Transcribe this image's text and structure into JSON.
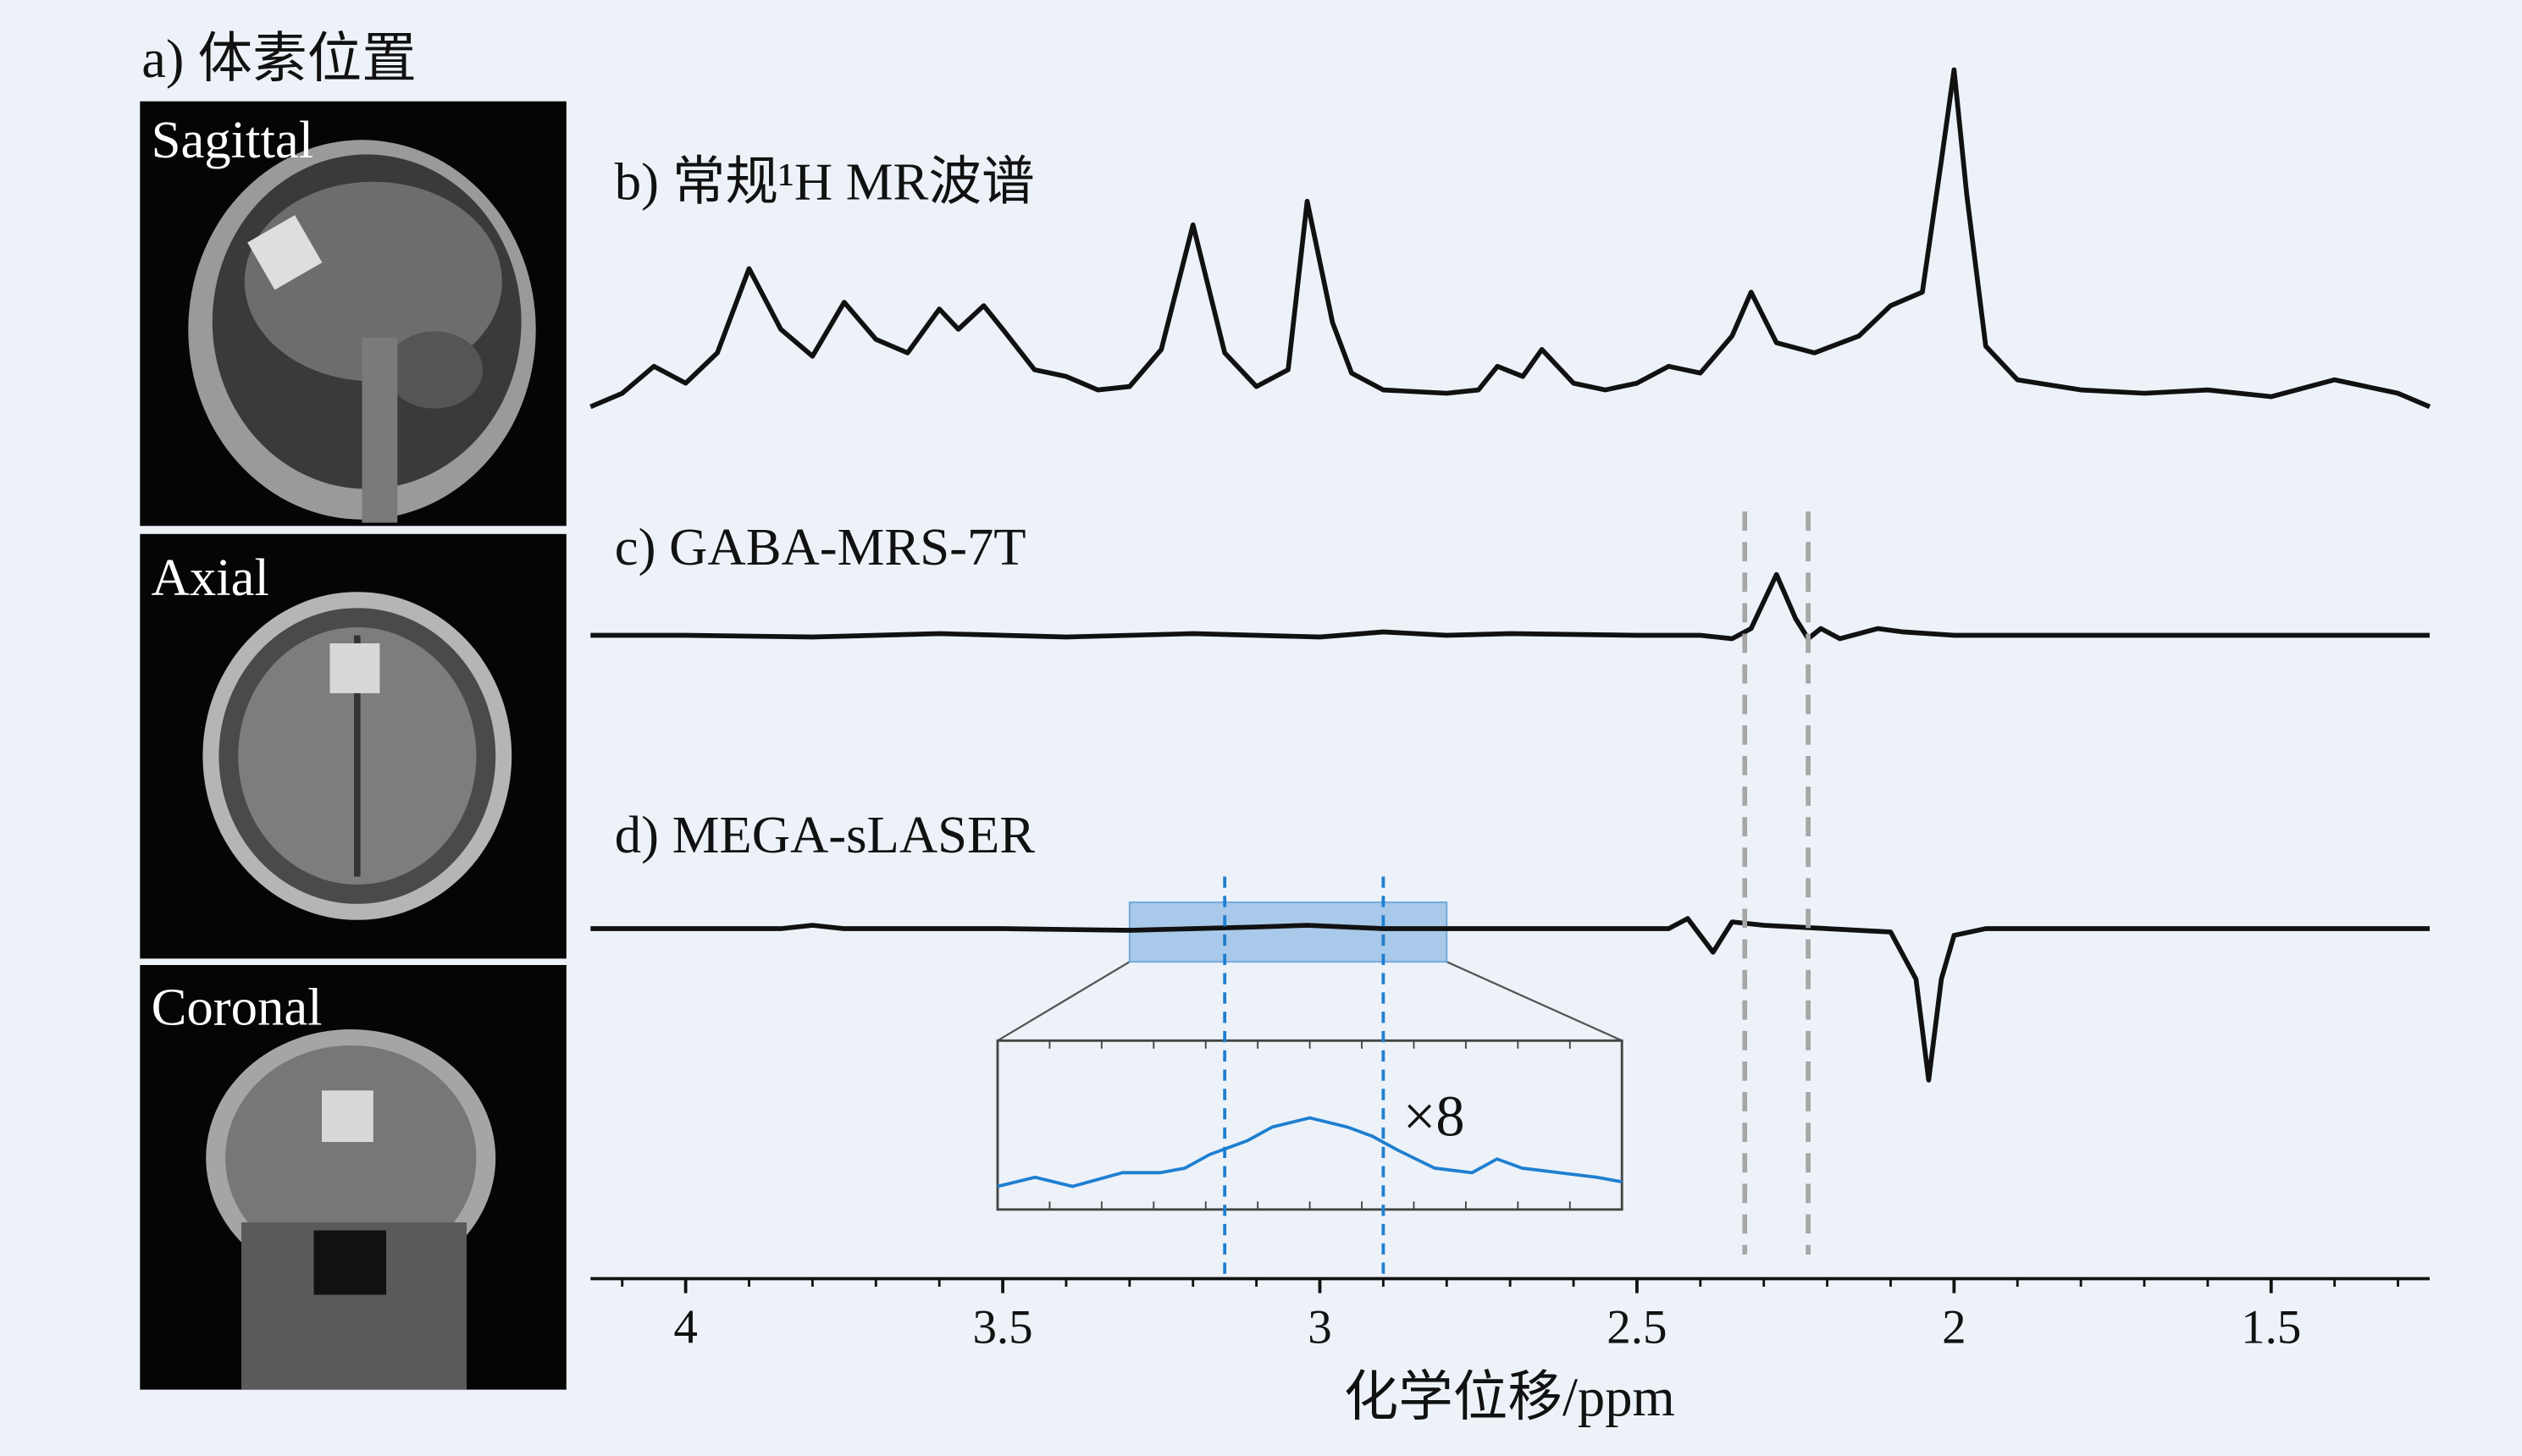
{
  "images": {
    "title": "a) 体素位置",
    "views": [
      "Sagittal",
      "Axial",
      "Coronal"
    ]
  },
  "chart_data": [
    {
      "type": "line",
      "title": "b) 常规¹H MR波谱",
      "color": "#111111",
      "xlim": [
        4.15,
        1.25
      ],
      "ylim": [
        0,
        105
      ],
      "x": [
        4.15,
        4.1,
        4.05,
        4.0,
        3.95,
        3.9,
        3.85,
        3.8,
        3.75,
        3.7,
        3.65,
        3.6,
        3.57,
        3.53,
        3.5,
        3.45,
        3.4,
        3.35,
        3.3,
        3.25,
        3.2,
        3.15,
        3.1,
        3.05,
        3.02,
        2.98,
        2.95,
        2.9,
        2.8,
        2.75,
        2.72,
        2.68,
        2.65,
        2.6,
        2.55,
        2.5,
        2.45,
        2.4,
        2.35,
        2.32,
        2.28,
        2.22,
        2.15,
        2.1,
        2.05,
        2.02,
        2.0,
        1.98,
        1.95,
        1.9,
        1.8,
        1.7,
        1.6,
        1.5,
        1.4,
        1.3,
        1.25
      ],
      "values": [
        1,
        5,
        13,
        8,
        17,
        42,
        24,
        16,
        32,
        21,
        17,
        30,
        24,
        31,
        24,
        12,
        10,
        6,
        7,
        18,
        55,
        17,
        7,
        12,
        62,
        26,
        11,
        6,
        5,
        6,
        13,
        10,
        18,
        8,
        6,
        8,
        13,
        11,
        22,
        35,
        20,
        17,
        22,
        31,
        35,
        74,
        101,
        64,
        19,
        9,
        6,
        5,
        6,
        4,
        9,
        5,
        1
      ]
    },
    {
      "type": "line",
      "title": "c) GABA-MRS-7T",
      "color": "#111111",
      "xlim": [
        4.15,
        1.25
      ],
      "ylim": [
        -10,
        20
      ],
      "x": [
        4.15,
        4.0,
        3.8,
        3.6,
        3.4,
        3.2,
        3.0,
        2.9,
        2.8,
        2.7,
        2.5,
        2.4,
        2.35,
        2.32,
        2.28,
        2.25,
        2.23,
        2.21,
        2.18,
        2.12,
        2.08,
        2.0,
        1.8,
        1.5,
        1.25
      ],
      "values": [
        0,
        0,
        -0.5,
        0.5,
        -0.5,
        0.5,
        -0.5,
        1,
        0,
        0.5,
        0,
        0,
        -1,
        2,
        18,
        5,
        -1,
        2,
        -1,
        2,
        1,
        0,
        0,
        0,
        0
      ],
      "vlines": [
        2.33,
        2.23
      ],
      "vline_color": "#a6a6a6"
    },
    {
      "type": "line",
      "title": "d) MEGA-sLASER",
      "color": "#111111",
      "xlim": [
        4.15,
        1.25
      ],
      "ylim": [
        -50,
        15
      ],
      "x": [
        4.15,
        3.85,
        3.8,
        3.75,
        3.5,
        3.3,
        3.1,
        3.02,
        2.9,
        2.6,
        2.45,
        2.42,
        2.38,
        2.35,
        2.3,
        2.2,
        2.1,
        2.06,
        2.04,
        2.02,
        2.0,
        1.95,
        1.25
      ],
      "values": [
        0,
        0,
        1,
        0,
        0,
        -0.5,
        0.5,
        1,
        0,
        0,
        0,
        3,
        -7,
        2,
        1,
        0,
        -1,
        -15,
        -45,
        -15,
        -2,
        0,
        0
      ],
      "highlight": [
        3.3,
        2.8
      ],
      "highlight_color": "#6fa8dc",
      "vlines": [
        3.15,
        2.9
      ],
      "vline_color": "#1f7fd0",
      "xticks": [
        4.0,
        3.5,
        3.0,
        2.5,
        2.0,
        1.5
      ],
      "xticks_minor": [
        4.1,
        3.9,
        3.8,
        3.7,
        3.6,
        3.4,
        3.3,
        3.2,
        3.1,
        2.9,
        2.8,
        2.7,
        2.6,
        2.4,
        2.3,
        2.2,
        2.1,
        1.9,
        1.8,
        1.7,
        1.6,
        1.4,
        1.3
      ],
      "xlabel": "化学位移/ppm"
    },
    {
      "type": "line",
      "color": "#1f7fd0",
      "annotation": "×8",
      "xlim": [
        3.3,
        2.8
      ],
      "ylim": [
        -5,
        20
      ],
      "x": [
        3.3,
        3.27,
        3.24,
        3.2,
        3.17,
        3.15,
        3.13,
        3.1,
        3.08,
        3.05,
        3.02,
        3.0,
        2.98,
        2.95,
        2.92,
        2.9,
        2.88,
        2.85,
        2.82,
        2.8
      ],
      "values": [
        -1,
        1,
        -1,
        2,
        2,
        3,
        6,
        9,
        12,
        14,
        12,
        10,
        7,
        3,
        2,
        5,
        3,
        2,
        1,
        0
      ]
    }
  ]
}
